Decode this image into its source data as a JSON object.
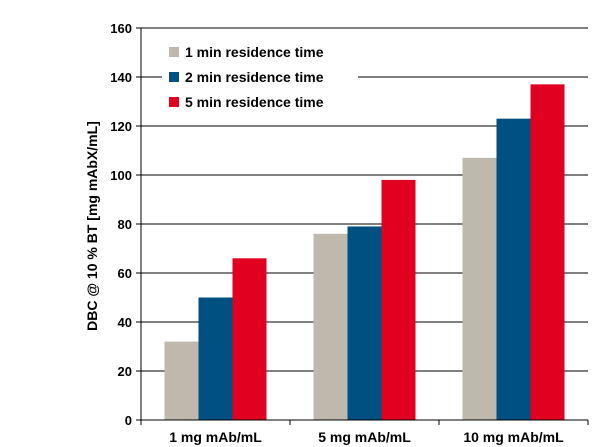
{
  "chart_data": {
    "type": "bar",
    "title": "",
    "xlabel": "",
    "ylabel": "DBC @ 10 % BT [mg mAbX/mL]",
    "ylim": [
      0,
      160
    ],
    "yticks": [
      0,
      20,
      40,
      60,
      80,
      100,
      120,
      140,
      160
    ],
    "grid": "horizontal",
    "legend_position": "top-left",
    "categories": [
      "1 mg mAb/mL",
      "5 mg mAb/mL",
      "10 mg mAb/mL"
    ],
    "series": [
      {
        "name": "1 min residence time",
        "color": "#bfb8ad",
        "values": [
          32,
          76,
          107
        ]
      },
      {
        "name": "2 min residence time",
        "color": "#005181",
        "values": [
          50,
          79,
          123
        ]
      },
      {
        "name": "5 min residence time",
        "color": "#e10020",
        "values": [
          66,
          98,
          137
        ]
      }
    ]
  }
}
